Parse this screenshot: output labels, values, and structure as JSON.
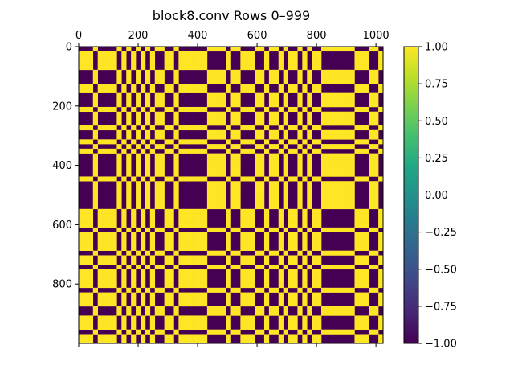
{
  "chart_data": {
    "type": "heatmap",
    "title": "block8.conv Rows 0–999",
    "x_ticks": [
      "0",
      "200",
      "400",
      "600",
      "800",
      "1000"
    ],
    "x_tick_values": [
      0,
      200,
      400,
      600,
      800,
      1000
    ],
    "y_ticks": [
      "0",
      "200",
      "400",
      "600",
      "800"
    ],
    "y_tick_values": [
      0,
      200,
      400,
      600,
      800
    ],
    "xlim": [
      0,
      1024
    ],
    "ylim": [
      0,
      1000
    ],
    "x_axis_position": "top",
    "grid": false,
    "values": "binary matrix of -1 (dark purple) and +1 (yellow), 1000 rows x 1024 columns",
    "colorbar": {
      "colormap": "viridis",
      "range": [
        -1.0,
        1.0
      ],
      "ticks": [
        "1.00",
        "0.75",
        "0.50",
        "0.25",
        "0.00",
        "−0.25",
        "−0.50",
        "−0.75",
        "−1.00"
      ],
      "tick_values": [
        1.0,
        0.75,
        0.5,
        0.25,
        0.0,
        -0.25,
        -0.5,
        -0.75,
        -1.0
      ]
    },
    "colors": {
      "low": "#440154",
      "high": "#fde725"
    }
  }
}
